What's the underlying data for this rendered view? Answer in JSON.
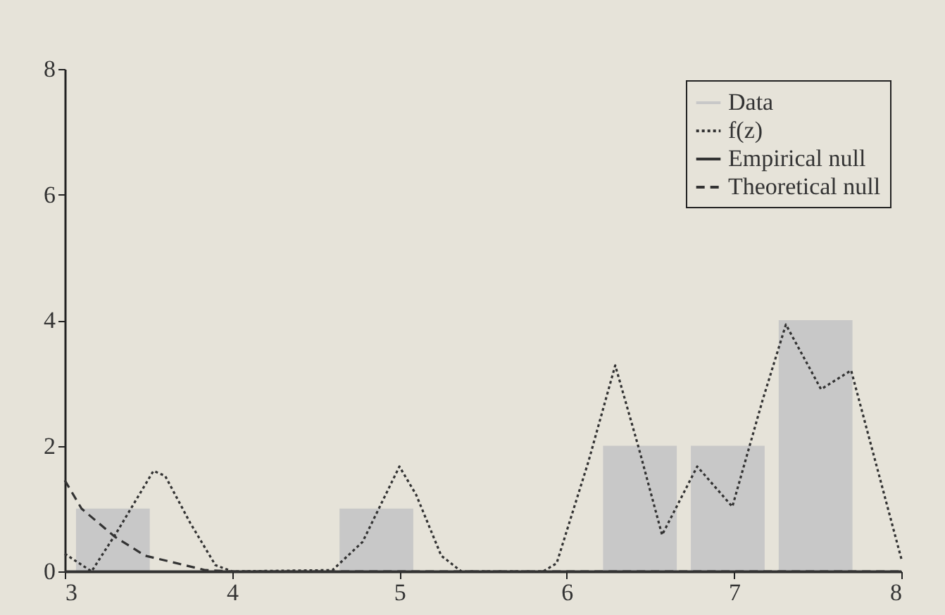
{
  "chart_data": {
    "type": "histogram",
    "xlim": [
      3,
      8
    ],
    "ylim": [
      0,
      8
    ],
    "xticks": [
      3,
      4,
      5,
      6,
      7,
      8
    ],
    "yticks": [
      0,
      2,
      4,
      6,
      8
    ],
    "grid": false,
    "legend": "top right",
    "series": [
      {
        "name": "Data",
        "type": "histogram",
        "color": "#c8c8c8",
        "bins": [
          3.025,
          3.55,
          4.075,
          4.6,
          5.125,
          5.65,
          6.175,
          6.7,
          7.225,
          7.75
        ],
        "values": [
          1,
          0,
          0,
          1,
          0,
          0,
          2,
          2,
          4
        ]
      },
      {
        "name": "f(z)",
        "type": "line",
        "color": "#333333",
        "line_style": "dotted",
        "x": [
          3.0,
          3.16,
          3.31,
          3.53,
          3.6,
          3.75,
          3.9,
          4.0,
          4.6,
          4.78,
          5.0,
          5.1,
          5.25,
          5.37,
          5.86,
          5.94,
          6.13,
          6.29,
          6.43,
          6.57,
          6.78,
          6.99,
          7.17,
          7.31,
          7.52,
          7.7,
          8.0
        ],
        "values": [
          0.28,
          0,
          0.62,
          1.6,
          1.52,
          0.77,
          0.1,
          0,
          0.02,
          0.47,
          1.67,
          1.22,
          0.25,
          0,
          0,
          0.13,
          1.75,
          3.28,
          1.97,
          0.58,
          1.67,
          1.03,
          2.72,
          3.93,
          2.9,
          3.2,
          0.2
        ]
      },
      {
        "name": "Empirical null",
        "type": "line",
        "color": "#333333",
        "line_style": "solid",
        "x": [
          3,
          8
        ],
        "values": [
          0,
          0
        ]
      },
      {
        "name": "Theoretical null",
        "type": "line",
        "color": "#333333",
        "line_style": "dashed",
        "x": [
          3.0,
          3.1,
          3.3,
          3.48,
          3.84,
          4.0,
          8.0
        ],
        "values": [
          1.45,
          1.0,
          0.55,
          0.25,
          0.02,
          0,
          0
        ]
      }
    ]
  }
}
